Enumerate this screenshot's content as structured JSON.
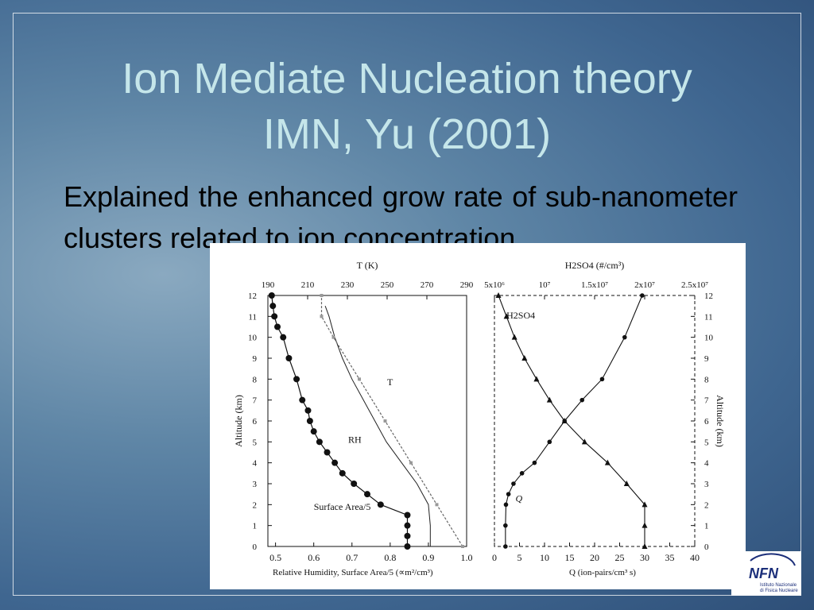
{
  "slide": {
    "title_line1": "Ion Mediate Nucleation theory",
    "title_line2": "IMN, Yu (2001)",
    "body": "Explained the enhanced grow rate of sub-nanometer clusters related to ion concentration"
  },
  "logo": {
    "text": "NFN",
    "sub1": "Istituto Nazionale",
    "sub2": "di Fisica Nucleare"
  },
  "colors": {
    "title": "#c5e6ea",
    "body": "#000000",
    "background": "#4a7199"
  },
  "chart_data": [
    {
      "type": "line",
      "top_axis_label": "T (K)",
      "top_ticks": [
        "190",
        "210",
        "230",
        "250",
        "270",
        "290"
      ],
      "xlabel": "Relative Humidity, Surface Area/5 (∝m²/cm³)",
      "x_ticks": [
        "0.5",
        "0.6",
        "0.7",
        "0.8",
        "0.9",
        "1.0"
      ],
      "ylabel": "Altitude (km)",
      "y_ticks": [
        "0",
        "1",
        "2",
        "3",
        "4",
        "5",
        "6",
        "7",
        "8",
        "9",
        "10",
        "11",
        "12"
      ],
      "xlim": [
        0.48,
        1.0
      ],
      "ylim": [
        0,
        12
      ],
      "series": [
        {
          "name": "Surface Area/5",
          "x": [
            0.845,
            0.845,
            0.845,
            0.845,
            0.775,
            0.74,
            0.705,
            0.675,
            0.655,
            0.635,
            0.615,
            0.6,
            0.59,
            0.585,
            0.57,
            0.555,
            0.535,
            0.52,
            0.505,
            0.497,
            0.493,
            0.49
          ],
          "y": [
            0,
            0.5,
            1,
            1.5,
            2,
            2.5,
            3,
            3.5,
            4,
            4.5,
            5,
            5.5,
            6,
            6.5,
            7,
            8,
            9,
            10,
            10.5,
            11,
            11.5,
            12
          ]
        },
        {
          "name": "RH",
          "x": [
            0.905,
            0.905,
            0.9,
            0.87,
            0.83,
            0.79,
            0.76,
            0.73,
            0.7,
            0.675,
            0.655,
            0.64,
            0.63
          ],
          "y": [
            0,
            1,
            2,
            3,
            4,
            5,
            6,
            7,
            8,
            9,
            10,
            11,
            11.5
          ]
        },
        {
          "name": "T",
          "temperature_K": [
            288,
            275,
            262,
            249,
            236,
            223,
            217,
            217
          ],
          "y": [
            0,
            2,
            4,
            6,
            8,
            10,
            11,
            12
          ]
        }
      ]
    },
    {
      "type": "line",
      "top_axis_label": "H2SO4 (#/cm³)",
      "top_ticks": [
        "5x10⁶",
        "10⁷",
        "1.5x10⁷",
        "2x10⁷",
        "2.5x10⁷"
      ],
      "xlabel": "Q (ion-pairs/cm³ s)",
      "x_ticks": [
        "0",
        "5",
        "10",
        "15",
        "20",
        "25",
        "30",
        "35",
        "40"
      ],
      "ylabel": "Altitude (km)",
      "y_ticks": [
        "0",
        "1",
        "2",
        "3",
        "4",
        "5",
        "6",
        "7",
        "8",
        "9",
        "10",
        "11",
        "12"
      ],
      "xlim": [
        0,
        40
      ],
      "ylim": [
        0,
        12
      ],
      "series": [
        {
          "name": "H2SO4",
          "h2so4_per_cm3": [
            20000000,
            20000000,
            20000000,
            18200000,
            16300000,
            14000000,
            12000000,
            10500000,
            9200000,
            8000000,
            7000000,
            6200000,
            5400000
          ],
          "y": [
            0,
            1,
            2,
            3,
            4,
            5,
            6,
            7,
            8,
            9,
            10,
            11,
            12
          ]
        },
        {
          "name": "Q",
          "x": [
            2.2,
            2.2,
            2.3,
            2.8,
            3.8,
            5.5,
            8,
            11,
            14,
            17.5,
            21.5,
            26,
            29.5
          ],
          "y": [
            0,
            1,
            2,
            2.5,
            3,
            3.5,
            4,
            5,
            6,
            7,
            8,
            10,
            12
          ]
        }
      ]
    }
  ]
}
